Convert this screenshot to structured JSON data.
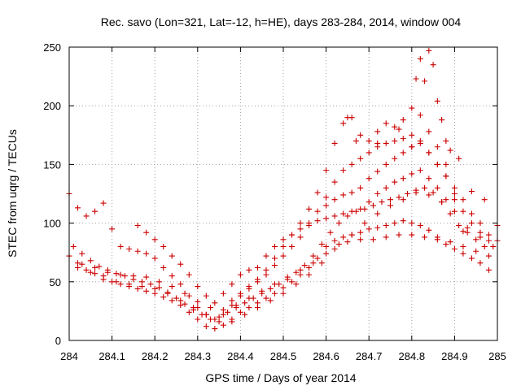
{
  "chart_data": {
    "type": "scatter",
    "title": "Rec. savo (Lon=321, Lat=-12, h=HE), days 283-284, 2014, window 004",
    "xlabel": "GPS time / Days of year 2014",
    "ylabel": "STEC from uqrg / TECUs",
    "xlim": [
      284,
      285
    ],
    "ylim": [
      0,
      250
    ],
    "xticks": [
      284,
      284.1,
      284.2,
      284.3,
      284.4,
      284.5,
      284.6,
      284.7,
      284.8,
      284.9,
      285
    ],
    "xtick_labels": [
      "284",
      "284.1",
      "284.2",
      "284.3",
      "284.4",
      "284.5",
      "284.6",
      "284.7",
      "284.8",
      "284.9",
      "285"
    ],
    "yticks": [
      0,
      50,
      100,
      150,
      200,
      250
    ],
    "ytick_labels": [
      "0",
      "50",
      "100",
      "150",
      "200",
      "250"
    ],
    "grid": true,
    "marker": "+",
    "color": "#cc0000",
    "series": [
      {
        "name": "track-1",
        "x": [
          284.0,
          284.02,
          284.04,
          284.06,
          284.08,
          284.1,
          284.12,
          284.14,
          284.16,
          284.18,
          284.2,
          284.22,
          284.24,
          284.26,
          284.28,
          284.3,
          284.32,
          284.34,
          284.36,
          284.38,
          284.4,
          284.42,
          284.44,
          284.46,
          284.48,
          284.5,
          284.52,
          284.54,
          284.56,
          284.58,
          284.6,
          284.62,
          284.64,
          284.66,
          284.68,
          284.7,
          284.72,
          284.74,
          284.76,
          284.78,
          284.8,
          284.82,
          284.84,
          284.86,
          284.88,
          284.9,
          284.92,
          284.94,
          284.96,
          284.98
        ],
        "y": [
          72,
          66,
          60,
          57,
          55,
          50,
          48,
          46,
          44,
          42,
          40,
          37,
          34,
          30,
          24,
          18,
          12,
          10,
          13,
          18,
          24,
          28,
          32,
          36,
          40,
          45,
          50,
          56,
          62,
          70,
          80,
          85,
          88,
          90,
          92,
          95,
          96,
          98,
          100,
          102,
          100,
          98,
          94,
          88,
          82,
          78,
          74,
          70,
          66,
          60
        ]
      },
      {
        "name": "track-2",
        "x": [
          284.01,
          284.03,
          284.05,
          284.07,
          284.09,
          284.11,
          284.13,
          284.15,
          284.17,
          284.19,
          284.21,
          284.23,
          284.25,
          284.27,
          284.29,
          284.31,
          284.33,
          284.35,
          284.37,
          284.39,
          284.41,
          284.43,
          284.45,
          284.47,
          284.49,
          284.51,
          284.53,
          284.55,
          284.57,
          284.59,
          284.61,
          284.63,
          284.65,
          284.67,
          284.69,
          284.71,
          284.73,
          284.75,
          284.77,
          284.79,
          284.81,
          284.83,
          284.85,
          284.87,
          284.89,
          284.91,
          284.93,
          284.95,
          284.97
        ],
        "y": [
          80,
          74,
          68,
          63,
          60,
          57,
          55,
          52,
          50,
          48,
          45,
          41,
          36,
          31,
          26,
          22,
          18,
          20,
          24,
          28,
          32,
          36,
          40,
          44,
          48,
          52,
          58,
          64,
          72,
          82,
          92,
          100,
          106,
          110,
          112,
          115,
          118,
          120,
          122,
          125,
          128,
          130,
          126,
          118,
          108,
          98,
          92,
          86,
          80
        ]
      },
      {
        "name": "track-3",
        "x": [
          284.0,
          284.02,
          284.04,
          284.06,
          284.08,
          284.1,
          284.12,
          284.14,
          284.16,
          284.18,
          284.2,
          284.22,
          284.24,
          284.26,
          284.28,
          284.3,
          284.32,
          284.34,
          284.36,
          284.38,
          284.4,
          284.42,
          284.44,
          284.46,
          284.48,
          284.5,
          284.52,
          284.54,
          284.56,
          284.58,
          284.6,
          284.62,
          284.64,
          284.66,
          284.68,
          284.7,
          284.72,
          284.74,
          284.76,
          284.78,
          284.8,
          284.82,
          284.84,
          284.86,
          284.88,
          284.9,
          284.92,
          284.94,
          284.96,
          284.98
        ],
        "y": [
          125,
          113,
          106,
          110,
          117,
          95,
          80,
          78,
          76,
          74,
          70,
          62,
          55,
          48,
          38,
          28,
          22,
          18,
          22,
          30,
          38,
          44,
          50,
          56,
          64,
          72,
          80,
          88,
          98,
          110,
          122,
          135,
          145,
          150,
          155,
          160,
          165,
          168,
          170,
          172,
          175,
          168,
          160,
          150,
          140,
          125,
          110,
          100,
          92,
          85
        ]
      },
      {
        "name": "track-4",
        "x": [
          284.38,
          284.4,
          284.42,
          284.44,
          284.46,
          284.48,
          284.5,
          284.52,
          284.54,
          284.56,
          284.58,
          284.6,
          284.62,
          284.64,
          284.66,
          284.68,
          284.7,
          284.72,
          284.74,
          284.76,
          284.78,
          284.8,
          284.82,
          284.84,
          284.86,
          284.88
        ],
        "y": [
          34,
          40,
          46,
          52,
          60,
          70,
          80,
          90,
          100,
          112,
          126,
          145,
          168,
          185,
          190,
          175,
          170,
          178,
          185,
          182,
          188,
          198,
          192,
          178,
          165,
          150
        ]
      },
      {
        "name": "track-5",
        "x": [
          284.02,
          284.05,
          284.08,
          284.11,
          284.14,
          284.17,
          284.2,
          284.23,
          284.26,
          284.29,
          284.32,
          284.35,
          284.38,
          284.41,
          284.44,
          284.47,
          284.5,
          284.53,
          284.56,
          284.59,
          284.62,
          284.65,
          284.68,
          284.71,
          284.74,
          284.77,
          284.8,
          284.83,
          284.86,
          284.89,
          284.92,
          284.95,
          284.98
        ],
        "y": [
          62,
          58,
          52,
          50,
          48,
          46,
          44,
          40,
          34,
          28,
          22,
          16,
          16,
          22,
          28,
          34,
          40,
          48,
          56,
          66,
          78,
          84,
          86,
          86,
          88,
          90,
          90,
          88,
          86,
          84,
          80,
          76,
          72
        ]
      },
      {
        "name": "track-6",
        "x": [
          284.03,
          284.06,
          284.09,
          284.12,
          284.15,
          284.18,
          284.21,
          284.24,
          284.27,
          284.3,
          284.33,
          284.36,
          284.39,
          284.42,
          284.45,
          284.48,
          284.51,
          284.54,
          284.57,
          284.6,
          284.63,
          284.66,
          284.69,
          284.72,
          284.75,
          284.78,
          284.81,
          284.84,
          284.87,
          284.9,
          284.93,
          284.96,
          284.99
        ],
        "y": [
          65,
          62,
          58,
          56,
          55,
          54,
          50,
          46,
          40,
          33,
          28,
          26,
          30,
          36,
          42,
          48,
          54,
          60,
          66,
          74,
          82,
          90,
          100,
          108,
          115,
          120,
          126,
          124,
          118,
          110,
          96,
          88,
          80
        ]
      },
      {
        "name": "track-7",
        "x": [
          284.16,
          284.18,
          284.2,
          284.22,
          284.24,
          284.26,
          284.28,
          284.3,
          284.32,
          284.34,
          284.36,
          284.38,
          284.4,
          284.42,
          284.44,
          284.46,
          284.48,
          284.5,
          284.52,
          284.54,
          284.56,
          284.58,
          284.6,
          284.62,
          284.64,
          284.66,
          284.68,
          284.7,
          284.72,
          284.74,
          284.76,
          284.78,
          284.8,
          284.82,
          284.84,
          284.86,
          284.88
        ],
        "y": [
          98,
          92,
          86,
          80,
          72,
          65,
          56,
          46,
          38,
          32,
          40,
          48,
          56,
          60,
          62,
          72,
          80,
          86,
          90,
          95,
          100,
          102,
          104,
          106,
          108,
          110,
          112,
          118,
          125,
          130,
          135,
          138,
          142,
          145,
          138,
          130,
          120
        ]
      },
      {
        "name": "track-8",
        "x": [
          284.6,
          284.62,
          284.64,
          284.66,
          284.68,
          284.7,
          284.72,
          284.74,
          284.76,
          284.78,
          284.8,
          284.82,
          284.84,
          284.86,
          284.88,
          284.9,
          284.92,
          284.94,
          284.96,
          284.98,
          285.0
        ],
        "y": [
          115,
          120,
          124,
          126,
          130,
          138,
          144,
          150,
          155,
          160,
          165,
          170,
          160,
          150,
          140,
          130,
          120,
          108,
          100,
          90,
          85
        ]
      },
      {
        "name": "outliers",
        "x": [
          284.65,
          284.67,
          284.72,
          284.77,
          284.8,
          284.81,
          284.82,
          284.83,
          284.84,
          284.85,
          284.86,
          284.87,
          284.88,
          284.89,
          284.9,
          284.91,
          284.92,
          284.94,
          284.97,
          285.0
        ],
        "y": [
          190,
          170,
          168,
          180,
          165,
          223,
          240,
          221,
          247,
          235,
          204,
          188,
          170,
          162,
          120,
          155,
          93,
          127,
          120,
          98
        ]
      }
    ]
  }
}
